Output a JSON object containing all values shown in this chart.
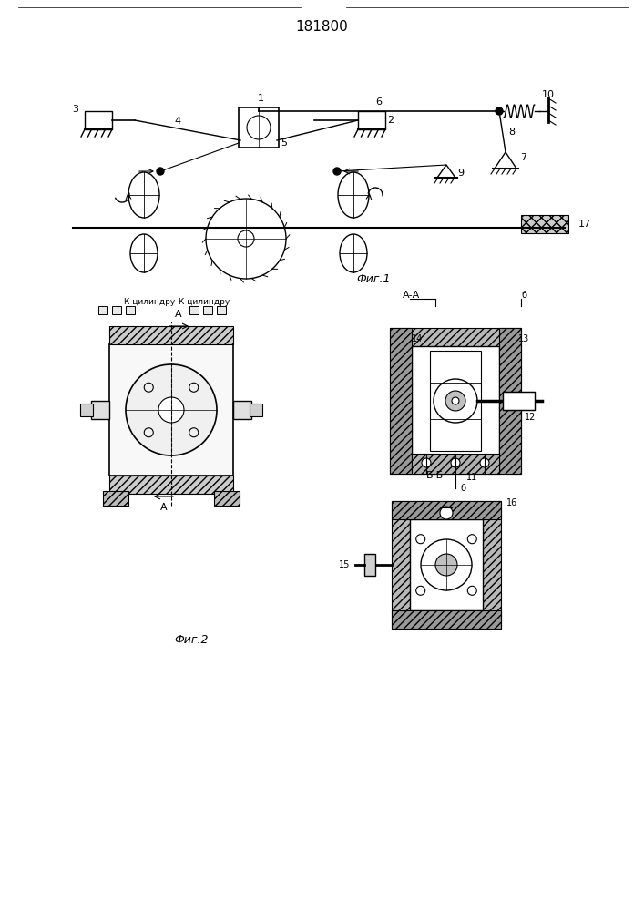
{
  "title": "181800",
  "title_fontsize": 12,
  "fig1_label": "Фиг.1",
  "fig2_label": "Фиг.2",
  "background_color": "#ffffff",
  "line_color": "#000000",
  "hatch_color": "#000000",
  "fig_width": 7.07,
  "fig_height": 10.0,
  "dpi": 100
}
